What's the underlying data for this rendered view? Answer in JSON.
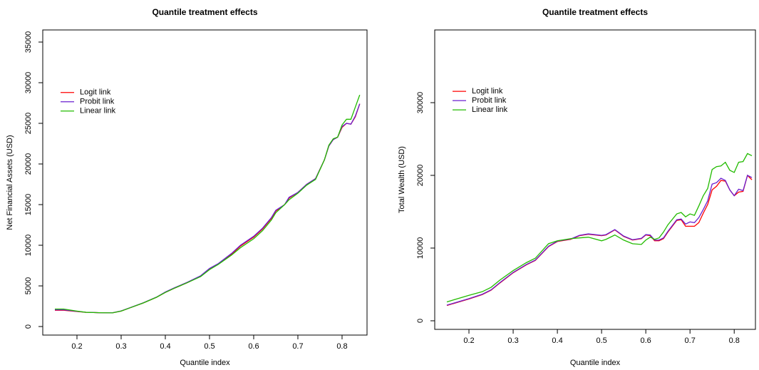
{
  "chart_data": [
    {
      "type": "line",
      "title": "Quantile treatment effects",
      "x_label": "Quantile index",
      "y_label": "Net Financial Assets (USD)",
      "x": [
        0.15,
        0.17,
        0.2,
        0.22,
        0.25,
        0.28,
        0.3,
        0.32,
        0.35,
        0.38,
        0.4,
        0.42,
        0.45,
        0.48,
        0.5,
        0.52,
        0.55,
        0.57,
        0.6,
        0.62,
        0.64,
        0.65,
        0.67,
        0.68,
        0.7,
        0.72,
        0.74,
        0.76,
        0.77,
        0.78,
        0.79,
        0.8,
        0.81,
        0.82,
        0.83,
        0.84
      ],
      "series": [
        {
          "name": "Logit link",
          "color": "#ff0000",
          "values": [
            2000,
            2000,
            1850,
            1750,
            1700,
            1680,
            1900,
            2300,
            2900,
            3600,
            4200,
            4700,
            5400,
            6200,
            7100,
            7700,
            8900,
            9900,
            11000,
            12000,
            13300,
            14200,
            15000,
            15800,
            16500,
            17500,
            18200,
            20500,
            22200,
            23000,
            23300,
            24500,
            25000,
            24900,
            25800,
            27400
          ]
        },
        {
          "name": "Probit link",
          "color": "#6a1fd0",
          "values": [
            2050,
            2050,
            1870,
            1760,
            1700,
            1690,
            1920,
            2320,
            2920,
            3620,
            4250,
            4750,
            5450,
            6250,
            7150,
            7750,
            9000,
            10000,
            11100,
            12100,
            13400,
            14300,
            15000,
            15900,
            16500,
            17500,
            18200,
            20500,
            22200,
            23000,
            23300,
            24600,
            25000,
            24900,
            25900,
            27400
          ]
        },
        {
          "name": "Linear link",
          "color": "#22bb00",
          "values": [
            2150,
            2150,
            1900,
            1750,
            1700,
            1680,
            1900,
            2300,
            2900,
            3600,
            4200,
            4700,
            5400,
            6150,
            7000,
            7650,
            8800,
            9700,
            10800,
            11800,
            13100,
            14000,
            15000,
            15600,
            16400,
            17400,
            18100,
            20500,
            22300,
            23100,
            23300,
            24800,
            25500,
            25500,
            27000,
            28500
          ]
        }
      ],
      "xlim": [
        0.1226,
        0.8565
      ],
      "xticks": [
        0.2,
        0.3,
        0.4,
        0.5,
        0.6,
        0.7,
        0.8
      ],
      "ylim": [
        -1050,
        36490
      ],
      "yticks": [
        0,
        5000,
        10000,
        15000,
        20000,
        25000,
        30000,
        35000
      ],
      "legend": "top-left"
    },
    {
      "type": "line",
      "title": "Quantile treatment effects",
      "x_label": "Quantile index",
      "y_label": "Total Wealth (USD)",
      "x": [
        0.15,
        0.2,
        0.23,
        0.25,
        0.27,
        0.3,
        0.33,
        0.35,
        0.38,
        0.4,
        0.43,
        0.45,
        0.47,
        0.5,
        0.51,
        0.53,
        0.55,
        0.57,
        0.59,
        0.6,
        0.61,
        0.62,
        0.63,
        0.64,
        0.65,
        0.67,
        0.68,
        0.69,
        0.7,
        0.71,
        0.72,
        0.73,
        0.74,
        0.75,
        0.76,
        0.77,
        0.78,
        0.79,
        0.8,
        0.81,
        0.82,
        0.83,
        0.84
      ],
      "series": [
        {
          "name": "Logit link",
          "color": "#ff0000",
          "values": [
            2100,
            3000,
            3600,
            4200,
            5200,
            6600,
            7700,
            8300,
            10200,
            10900,
            11200,
            11700,
            11900,
            11700,
            11800,
            12500,
            11600,
            11100,
            11300,
            11800,
            11700,
            11000,
            11000,
            11300,
            12200,
            13800,
            13900,
            13000,
            13000,
            13000,
            13500,
            14800,
            16000,
            18000,
            18500,
            19300,
            19200,
            18000,
            17200,
            17700,
            17800,
            20000,
            19400
          ]
        },
        {
          "name": "Probit link",
          "color": "#6a1fd0",
          "values": [
            2150,
            3050,
            3650,
            4250,
            5250,
            6650,
            7750,
            8350,
            10250,
            10950,
            11250,
            11750,
            11950,
            11750,
            11850,
            12550,
            11650,
            11150,
            11350,
            11850,
            11800,
            11100,
            11100,
            11400,
            12300,
            13900,
            14000,
            13300,
            13600,
            13500,
            14200,
            15300,
            16500,
            18800,
            19000,
            19600,
            19300,
            18000,
            17200,
            18100,
            17900,
            20000,
            19700
          ]
        },
        {
          "name": "Linear link",
          "color": "#22bb00",
          "values": [
            2600,
            3500,
            4000,
            4600,
            5600,
            6900,
            8000,
            8600,
            10600,
            11000,
            11300,
            11400,
            11500,
            11000,
            11200,
            11800,
            11100,
            10600,
            10500,
            11100,
            11500,
            11200,
            11400,
            12200,
            13200,
            14700,
            14900,
            14300,
            14700,
            14500,
            15800,
            17200,
            18200,
            20800,
            21200,
            21300,
            21800,
            20700,
            20400,
            21800,
            21900,
            23000,
            22700
          ]
        }
      ],
      "xlim": [
        0.1226,
        0.848
      ],
      "xticks": [
        0.2,
        0.3,
        0.4,
        0.5,
        0.6,
        0.7,
        0.8
      ],
      "ylim": [
        -1180,
        40000
      ],
      "yticks": [
        0,
        10000,
        20000,
        30000
      ],
      "legend": "top-left"
    }
  ]
}
